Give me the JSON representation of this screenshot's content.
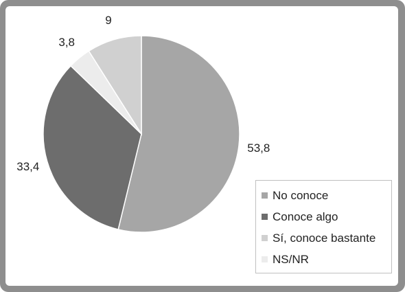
{
  "chart_data": {
    "type": "pie",
    "title": "",
    "categories": [
      "No conoce",
      "Conoce algo",
      "Sí, conoce bastante",
      "NS/NR"
    ],
    "values": [
      53.8,
      33.4,
      9,
      3.8
    ],
    "value_labels": [
      "53,8",
      "33,4",
      "9",
      "3,8"
    ],
    "order_clockwise_from_top": [
      "No conoce",
      "Conoce algo",
      "NS/NR",
      "Sí, conoce bastante"
    ],
    "colors": {
      "No conoce": "#a6a6a6",
      "Conoce algo": "#6d6d6d",
      "Sí, conoce bastante": "#d0d0d0",
      "NS/NR": "#ececec"
    },
    "legend_position": "bottom-right",
    "legend": [
      {
        "label": "No conoce",
        "color": "#a6a6a6"
      },
      {
        "label": "Conoce algo",
        "color": "#6d6d6d"
      },
      {
        "label": "Sí, conoce bastante",
        "color": "#d0d0d0"
      },
      {
        "label": "NS/NR",
        "color": "#ececec"
      }
    ]
  }
}
